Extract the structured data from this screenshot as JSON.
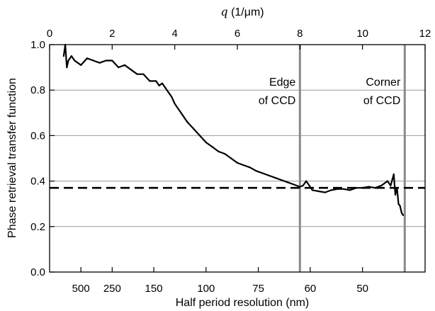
{
  "chart_data": {
    "type": "line",
    "top_axis": {
      "label_symbol": "q",
      "label_unit": " (1/μm)",
      "range": [
        0,
        12
      ],
      "ticks": [
        0,
        2,
        4,
        6,
        8,
        10,
        12
      ],
      "tick_labels": [
        "0",
        "2",
        "4",
        "6",
        "8",
        "10",
        "12"
      ]
    },
    "xlabel": "Half period resolution (nm)",
    "bottom_tick_labels": [
      {
        "label": "500",
        "q": 1.0
      },
      {
        "label": "250",
        "q": 2.0
      },
      {
        "label": "150",
        "q": 3.33
      },
      {
        "label": "100",
        "q": 5.0
      },
      {
        "label": "75",
        "q": 6.67
      },
      {
        "label": "60",
        "q": 8.33
      },
      {
        "label": "50",
        "q": 10.0
      }
    ],
    "ylabel": "Phase retrieval transfer function",
    "ylim": [
      0.0,
      1.0
    ],
    "yticks": [
      0.0,
      0.2,
      0.4,
      0.6,
      0.8,
      1.0
    ],
    "ytick_labels": [
      "0.0",
      "0.2",
      "0.4",
      "0.6",
      "0.8",
      "1.0"
    ],
    "grid": "horizontal",
    "series": [
      {
        "x": [
          0.45,
          0.5,
          0.55,
          0.6,
          0.7,
          0.8,
          0.9,
          1.0,
          1.2,
          1.4,
          1.6,
          1.8,
          2.0,
          2.2,
          2.4,
          2.6,
          2.8,
          3.0,
          3.2,
          3.4,
          3.5,
          3.6,
          3.7,
          3.8,
          3.9,
          4.0,
          4.2,
          4.4,
          4.6,
          4.8,
          5.0,
          5.2,
          5.4,
          5.6,
          5.8,
          6.0,
          6.2,
          6.4,
          6.6,
          6.8,
          7.0,
          7.2,
          7.4,
          7.6,
          7.8,
          8.0,
          8.1,
          8.2,
          8.4,
          8.6,
          8.8,
          9.0,
          9.2,
          9.4,
          9.6,
          9.8,
          10.0,
          10.2,
          10.4,
          10.6,
          10.8,
          10.9,
          11.0,
          11.05,
          11.1,
          11.15,
          11.2,
          11.25,
          11.3
        ],
        "y": [
          0.95,
          1.0,
          0.9,
          0.93,
          0.95,
          0.93,
          0.92,
          0.91,
          0.94,
          0.93,
          0.92,
          0.93,
          0.93,
          0.9,
          0.91,
          0.89,
          0.87,
          0.87,
          0.84,
          0.84,
          0.82,
          0.83,
          0.81,
          0.79,
          0.77,
          0.74,
          0.7,
          0.66,
          0.63,
          0.6,
          0.57,
          0.55,
          0.53,
          0.52,
          0.5,
          0.48,
          0.47,
          0.46,
          0.445,
          0.435,
          0.425,
          0.415,
          0.405,
          0.395,
          0.385,
          0.375,
          0.38,
          0.4,
          0.36,
          0.355,
          0.35,
          0.36,
          0.365,
          0.365,
          0.36,
          0.37,
          0.37,
          0.375,
          0.37,
          0.38,
          0.4,
          0.38,
          0.43,
          0.34,
          0.37,
          0.3,
          0.29,
          0.26,
          0.25
        ]
      }
    ],
    "reference_line": {
      "y": 0.37,
      "style": "dashed"
    },
    "vertical_lines": [
      {
        "q": 8.0,
        "label_lines": [
          "Edge",
          "of CCD"
        ]
      },
      {
        "q": 11.35,
        "label_lines": [
          "Corner",
          "of CCD"
        ]
      }
    ]
  }
}
